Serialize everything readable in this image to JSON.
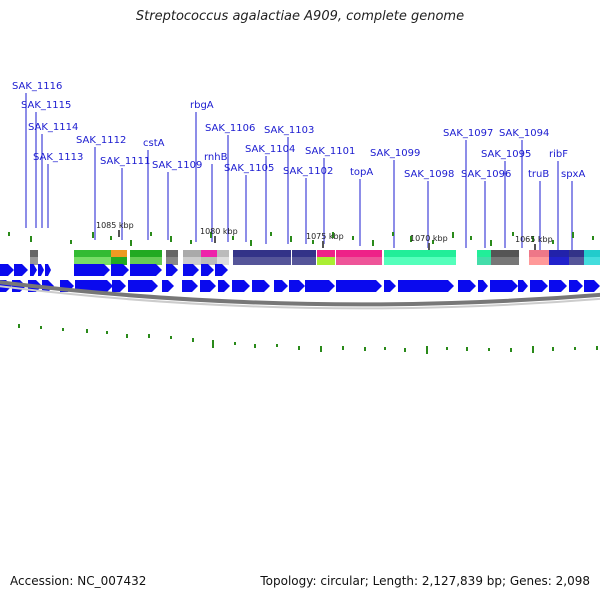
{
  "title": "Streptococcus agalactiae A909, complete genome",
  "footer": {
    "accession": "Accession: NC_007432",
    "summary": "Topology: circular; Length: 2,127,839 bp; Genes: 2,098"
  },
  "gene_labels": [
    "SAK_1116",
    "SAK_1115",
    "SAK_1114",
    "SAK_1113",
    "SAK_1112",
    "SAK_1111",
    "cstA",
    "SAK_1109",
    "rbgA",
    "rnhB",
    "SAK_1106",
    "SAK_1105",
    "SAK_1104",
    "SAK_1103",
    "SAK_1102",
    "SAK_1101",
    "topA",
    "SAK_1099",
    "SAK_1098",
    "SAK_1097",
    "SAK_1096",
    "SAK_1095",
    "SAK_1094",
    "truB",
    "ribF",
    "spxA"
  ],
  "scale_labels": [
    "1085 kbp",
    "1080 kbp",
    "1075 kbp",
    "1070 kbp",
    "1065 kbp"
  ],
  "colors": {
    "label": "#1b1bd0",
    "arrow": "#0a0aee",
    "backbone": "#777777",
    "gc_skew": "#2a8a1a"
  }
}
